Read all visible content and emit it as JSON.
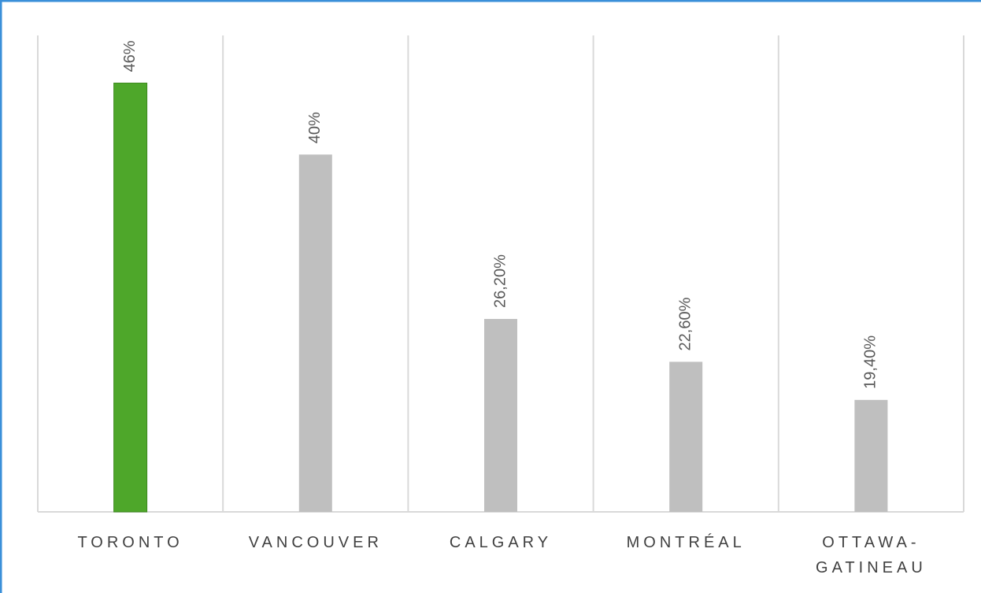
{
  "chart_data": {
    "type": "bar",
    "categories": [
      "TORONTO",
      "VANCOUVER",
      "CALGARY",
      "MONTRÉAL",
      "OTTAWA-GATINEAU"
    ],
    "values": [
      46,
      40,
      26.2,
      22.6,
      19.4
    ],
    "value_labels": [
      "46%",
      "40%",
      "26,20%",
      "22,60%",
      "19,40%"
    ],
    "colors": [
      "#4ea72a",
      "#bfbfbf",
      "#bfbfbf",
      "#bfbfbf",
      "#bfbfbf"
    ],
    "ylim": [
      10,
      50
    ],
    "grid": true
  }
}
